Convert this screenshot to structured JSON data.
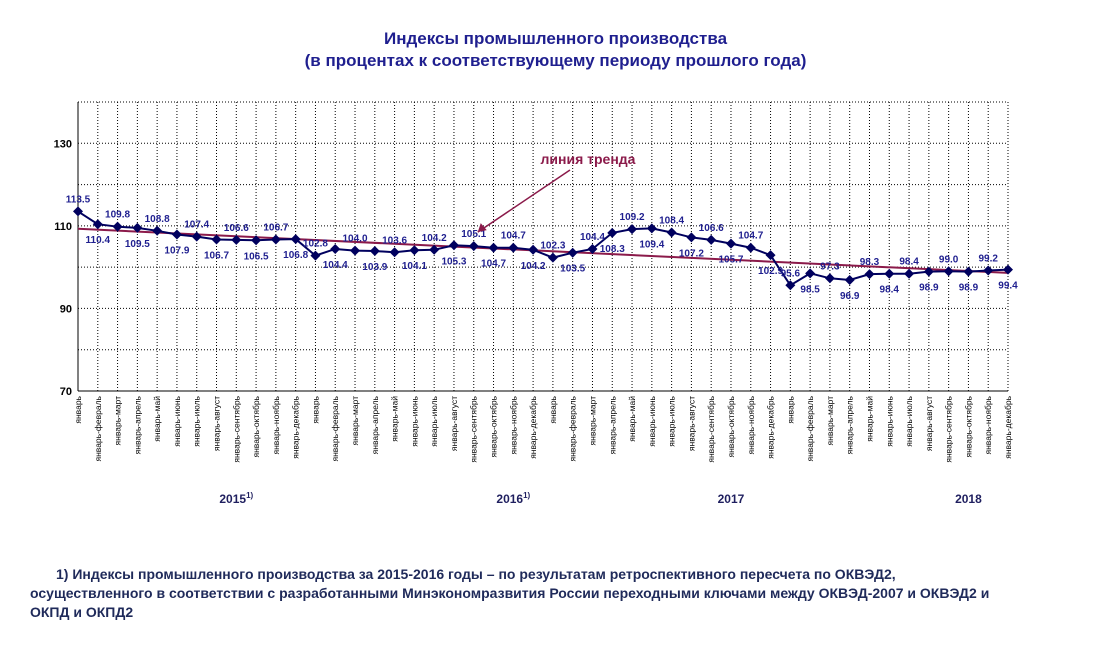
{
  "chart_data": {
    "type": "line",
    "title": "Индексы промышленного производства",
    "subtitle": "(в процентах к соответствующему периоду прошлого года)",
    "ylim": [
      70,
      140
    ],
    "yticks": [
      "70",
      "90",
      "110",
      "130"
    ],
    "grid": true,
    "series_color": "#00005e",
    "trend_color": "#8b1a4a",
    "categories": [
      "январь",
      "январь-февраль",
      "январь-март",
      "январь-апрель",
      "январь-май",
      "январь-июнь",
      "январь-июль",
      "январь-август",
      "январь-сентябрь",
      "январь-октябрь",
      "январь-ноябрь",
      "январь-декабрь",
      "январь",
      "январь-февраль",
      "январь-март",
      "январь-апрель",
      "январь-май",
      "январь-июнь",
      "январь-июль",
      "январь-август",
      "январь-сентябрь",
      "январь-октябрь",
      "январь-ноябрь",
      "январь-декабрь",
      "январь",
      "январь-февраль",
      "январь-март",
      "январь-апрель",
      "январь-май",
      "январь-июнь",
      "январь-июль",
      "январь-август",
      "январь-сентябрь",
      "январь-октябрь",
      "январь-ноябрь",
      "январь-декабрь",
      "январь",
      "январь-февраль",
      "январь-март",
      "январь-апрель",
      "январь-май",
      "январь-июнь",
      "январь-июль",
      "январь-август",
      "январь-сентябрь",
      "январь-октябрь",
      "январь-ноябрь",
      "январь-декабрь"
    ],
    "series": [
      {
        "values": [
          113.5,
          110.4,
          109.8,
          109.5,
          108.8,
          107.9,
          107.4,
          106.7,
          106.6,
          106.5,
          106.7,
          106.8,
          102.8,
          104.4,
          104.0,
          103.9,
          103.6,
          104.1,
          104.2,
          105.3,
          105.1,
          104.7,
          104.7,
          104.2,
          102.3,
          103.5,
          104.4,
          108.3,
          109.2,
          109.4,
          108.4,
          107.2,
          106.6,
          105.7,
          104.7,
          102.9,
          95.6,
          98.5,
          97.3,
          96.9,
          98.3,
          98.4,
          98.4,
          98.9,
          99.0,
          98.9,
          99.2,
          99.4
        ],
        "labels": [
          "113.5",
          "110.4",
          "109.8",
          "109.5",
          "108.8",
          "107.9",
          "107.4",
          "106.7",
          "106.6",
          "106.5",
          "106.7",
          "106.8",
          "102.8",
          "104.4",
          "104.0",
          "103.9",
          "103.6",
          "104.1",
          "104.2",
          "105.3",
          "105.1",
          "104.7",
          "104.7",
          "104.2",
          "102.3",
          "103.5",
          "104.4",
          "108.3",
          "109.2",
          "109.4",
          "108.4",
          "107.2",
          "106.6",
          "105.7",
          "104.7",
          "102.9",
          "95.6",
          "98.5",
          "97.3",
          "96.9",
          "98.3",
          "98.4",
          "98.4",
          "98.9",
          "99.0",
          "98.9",
          "99.2",
          "99.4"
        ]
      }
    ],
    "trend": {
      "start": 109.3,
      "end": 98.6
    },
    "annotation": "линия тренда",
    "year_labels": [
      {
        "text": "2015",
        "sup": "1)",
        "index": 8
      },
      {
        "text": "2016",
        "sup": "1)",
        "index": 22
      },
      {
        "text": "2017",
        "sup": "",
        "index": 33
      },
      {
        "text": "2018",
        "sup": "",
        "index": 45
      }
    ]
  },
  "footnote": {
    "line1": "1) Индексы промышленного производства за 2015-2016 годы – по результатам ретроспективного пересчета по ОКВЭД2,",
    "line2": "осуществленного в соответствии с разработанными Минэкономразвития России переходными ключами между ОКВЭД-2007 и ОКВЭД2 и",
    "line3": "ОКПД и ОКПД2"
  }
}
